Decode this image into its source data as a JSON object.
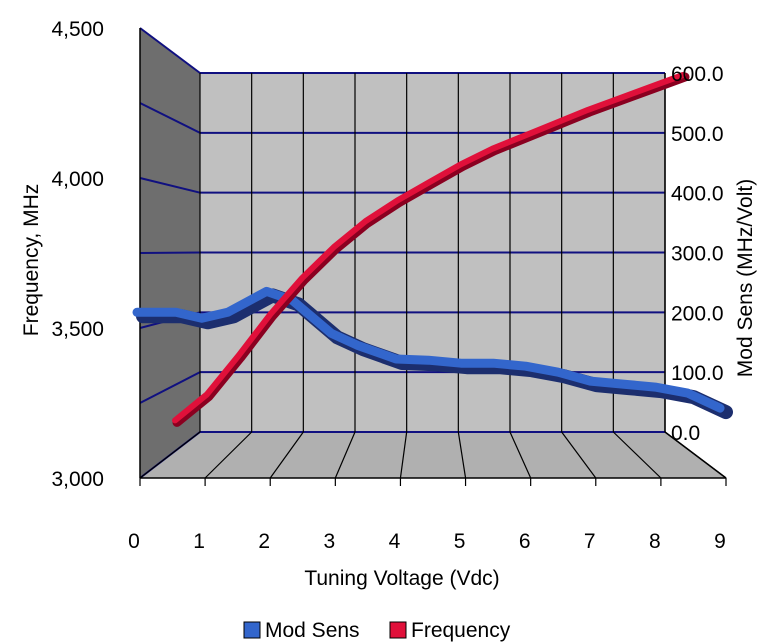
{
  "chart_data": {
    "type": "line",
    "xlabel": "Tuning Voltage (Vdc)",
    "ylabel": "Frequency, MHz",
    "y2label": "Mod Sens (MHz/Volt)",
    "xlim": [
      0,
      9
    ],
    "ylim": [
      3000,
      4500
    ],
    "y2lim": [
      0,
      600
    ],
    "x_ticks": [
      "0",
      "1",
      "2",
      "3",
      "4",
      "5",
      "6",
      "7",
      "8",
      "9"
    ],
    "y_ticks": [
      "3,000",
      "3,500",
      "4,000",
      "4,500"
    ],
    "y2_ticks": [
      "0.0",
      "100.0",
      "200.0",
      "300.0",
      "400.0",
      "500.0",
      "600.0"
    ],
    "grid": true,
    "three_d": true,
    "legend_position": "bottom",
    "series": [
      {
        "name": "Mod Sens",
        "axis": "right",
        "color": "#3366cc",
        "x": [
          0,
          0.6,
          1,
          1.4,
          2,
          2.4,
          3,
          3.4,
          4,
          4.5,
          5,
          5.5,
          6,
          6.5,
          7,
          7.5,
          8,
          8.5,
          9
        ],
        "values": [
          200,
          200,
          190,
          200,
          235,
          220,
          165,
          145,
          122,
          120,
          115,
          115,
          110,
          100,
          85,
          80,
          75,
          65,
          40
        ]
      },
      {
        "name": "Frequency",
        "axis": "left",
        "color": "#e0103a",
        "x": [
          0.5,
          1,
          1.5,
          2,
          2.5,
          3,
          3.5,
          4,
          4.5,
          5,
          5.5,
          6,
          6.5,
          7,
          7.5,
          8,
          8.5
        ],
        "values": [
          3010,
          3110,
          3260,
          3420,
          3560,
          3680,
          3780,
          3860,
          3930,
          4000,
          4060,
          4110,
          4160,
          4210,
          4255,
          4300,
          4345
        ]
      }
    ]
  },
  "legend": {
    "items": [
      {
        "label": "Mod Sens",
        "color": "#3366cc"
      },
      {
        "label": "Frequency",
        "color": "#e0103a"
      }
    ]
  }
}
